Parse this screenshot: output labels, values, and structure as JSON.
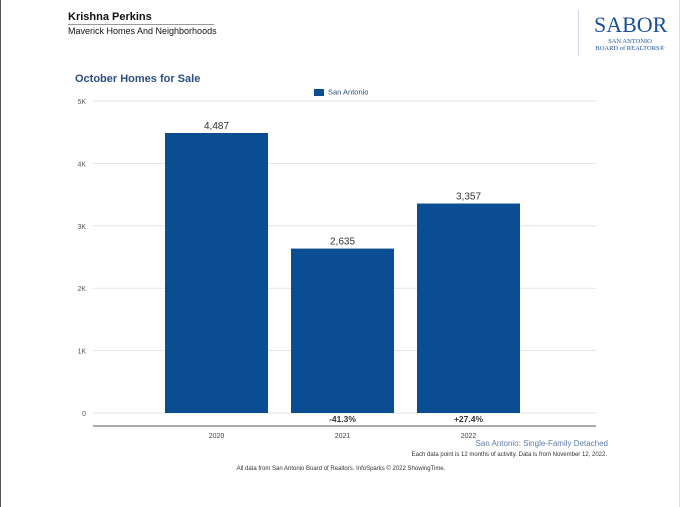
{
  "header": {
    "agent_name": "Krishna Perkins",
    "agent_company": "Maverick Homes And Neighborhoods"
  },
  "logo": {
    "word": "SABOR",
    "line1": "SAN ANTONIO",
    "line2": "BOARD of REALTORS®",
    "color": "#1b4f9b"
  },
  "chart_data": {
    "type": "bar",
    "title": "October Homes for Sale",
    "categories": [
      "2020",
      "2021",
      "2022"
    ],
    "series": [
      {
        "name": "San Antonio",
        "values": [
          4487,
          2635,
          3357
        ],
        "color": "#0b4d92"
      }
    ],
    "data_labels": [
      "4,487",
      "2,635",
      "3,357"
    ],
    "change_labels": [
      "",
      "-41.3%",
      "+27.4%"
    ],
    "yticks": [
      0,
      1000,
      2000,
      3000,
      4000,
      5000
    ],
    "ytick_labels": [
      "0",
      "1K",
      "2K",
      "3K",
      "4K",
      "5K"
    ],
    "ylim": [
      0,
      5000
    ],
    "grid": true,
    "legend_position": "top-center"
  },
  "footnotes": {
    "series_note": "San Antonio: Single-Family Detached",
    "activity_note": "Each data point is 12 months of activity. Data is from November 12, 2022.",
    "source_note": "All data from San Antonio Board of Realtors. InfoSparks © 2022 ShowingTime."
  }
}
